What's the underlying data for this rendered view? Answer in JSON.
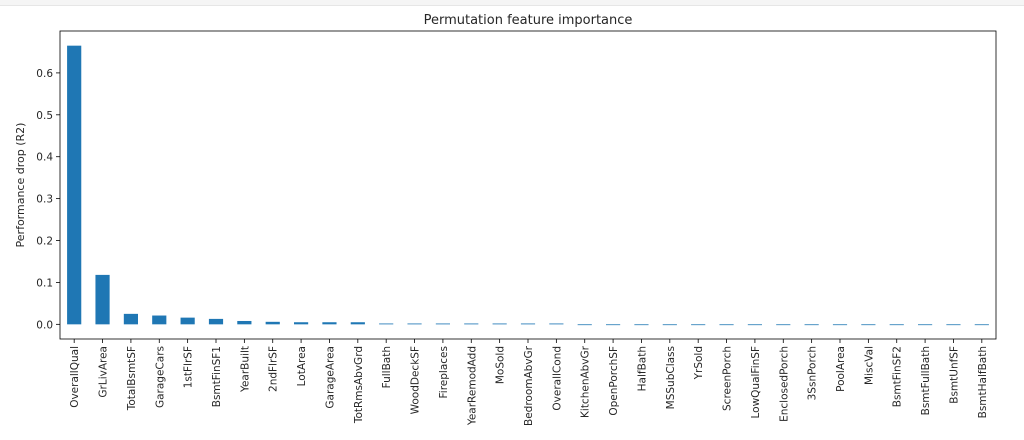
{
  "chart_data": {
    "type": "bar",
    "title": "Permutation feature importance",
    "xlabel": "",
    "ylabel": "Performance drop (R2)",
    "ylim": [
      -0.035,
      0.7
    ],
    "yticks": [
      0.0,
      0.1,
      0.2,
      0.3,
      0.4,
      0.5,
      0.6
    ],
    "ytick_labels": [
      "0.0",
      "0.1",
      "0.2",
      "0.3",
      "0.4",
      "0.5",
      "0.6"
    ],
    "bar_color": "#1f77b4",
    "grid": false,
    "categories": [
      "OverallQual",
      "GrLivArea",
      "TotalBsmtSF",
      "GarageCars",
      "1stFlrSF",
      "BsmtFinSF1",
      "YearBuilt",
      "2ndFlrSF",
      "LotArea",
      "GarageArea",
      "TotRmsAbvGrd",
      "FullBath",
      "WoodDeckSF",
      "Fireplaces",
      "YearRemodAdd",
      "MoSold",
      "BedroomAbvGr",
      "OverallCond",
      "KitchenAbvGr",
      "OpenPorchSF",
      "HalfBath",
      "MSSubClass",
      "YrSold",
      "ScreenPorch",
      "LowQualFinSF",
      "EnclosedPorch",
      "3SsnPorch",
      "PoolArea",
      "MiscVal",
      "BsmtFinSF2",
      "BsmtFullBath",
      "BsmtUnfSF",
      "BsmtHalfBath"
    ],
    "values": [
      0.665,
      0.118,
      0.025,
      0.021,
      0.016,
      0.013,
      0.008,
      0.006,
      0.005,
      0.005,
      0.005,
      0.002,
      0.002,
      0.002,
      0.002,
      0.002,
      0.002,
      0.002,
      0.0,
      0.0,
      0.0,
      0.0,
      0.0,
      0.0,
      0.0,
      0.0,
      0.0,
      0.0,
      0.0,
      0.0,
      0.0,
      0.0,
      0.0
    ]
  }
}
